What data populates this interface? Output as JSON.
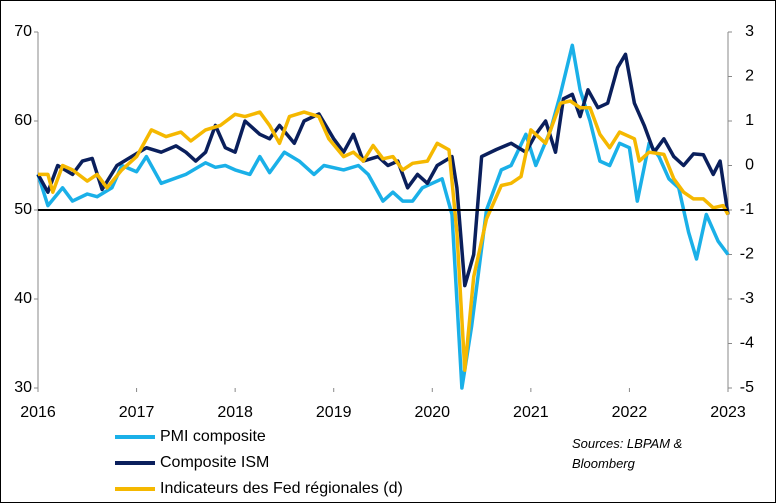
{
  "chart_data": {
    "type": "line",
    "xlim": [
      2016,
      2023
    ],
    "xticks": [
      2016,
      2017,
      2018,
      2019,
      2020,
      2021,
      2022,
      2023
    ],
    "ylim": [
      30,
      70
    ],
    "yticks": [
      30,
      40,
      50,
      60,
      70
    ],
    "y2lim": [
      -5,
      3
    ],
    "y2ticks": [
      -5,
      -4,
      -3,
      -2,
      -1,
      0,
      1,
      2,
      3
    ],
    "baseline": 50,
    "source": "Sources: LBPAM & Bloomberg",
    "series": [
      {
        "name": "PMI composite",
        "color": "#1ab0e8",
        "x": [
          2016.0,
          2016.1,
          2016.25,
          2016.35,
          2016.5,
          2016.6,
          2016.75,
          2016.85,
          2017.0,
          2017.1,
          2017.25,
          2017.5,
          2017.7,
          2017.8,
          2017.9,
          2018.0,
          2018.15,
          2018.25,
          2018.35,
          2018.5,
          2018.65,
          2018.8,
          2018.9,
          2019.1,
          2019.25,
          2019.35,
          2019.5,
          2019.6,
          2019.7,
          2019.8,
          2019.9,
          2020.1,
          2020.2,
          2020.3,
          2020.4,
          2020.55,
          2020.7,
          2020.8,
          2020.95,
          2021.05,
          2021.2,
          2021.3,
          2021.42,
          2021.5,
          2021.6,
          2021.7,
          2021.8,
          2021.9,
          2022.0,
          2022.08,
          2022.2,
          2022.3,
          2022.4,
          2022.5,
          2022.6,
          2022.68,
          2022.78,
          2022.9,
          2023.0
        ],
        "values": [
          54,
          50.5,
          52.5,
          51,
          51.8,
          51.5,
          52.5,
          55,
          54.3,
          56,
          53,
          54,
          55.3,
          54.8,
          55,
          54.5,
          54,
          56,
          54.2,
          56.5,
          55.5,
          54,
          55,
          54.5,
          55,
          54,
          51,
          52,
          51,
          51,
          52.5,
          53.5,
          49.5,
          30,
          37,
          50,
          54.5,
          55,
          58.5,
          55,
          59,
          63,
          68.5,
          63.5,
          60,
          55.5,
          55,
          57.5,
          57,
          51,
          57.5,
          56,
          53.5,
          52.5,
          47.5,
          44.5,
          49.5,
          46.5,
          45
        ]
      },
      {
        "name": "Composite ISM",
        "color": "#0a1f5c",
        "x": [
          2016.0,
          2016.1,
          2016.2,
          2016.35,
          2016.45,
          2016.55,
          2016.65,
          2016.8,
          2016.95,
          2017.1,
          2017.25,
          2017.4,
          2017.5,
          2017.6,
          2017.7,
          2017.8,
          2017.9,
          2018.0,
          2018.1,
          2018.25,
          2018.35,
          2018.45,
          2018.6,
          2018.7,
          2018.85,
          2019.0,
          2019.1,
          2019.2,
          2019.3,
          2019.45,
          2019.55,
          2019.65,
          2019.75,
          2019.85,
          2019.95,
          2020.05,
          2020.2,
          2020.25,
          2020.33,
          2020.42,
          2020.5,
          2020.65,
          2020.8,
          2020.95,
          2021.05,
          2021.15,
          2021.25,
          2021.33,
          2021.42,
          2021.5,
          2021.58,
          2021.68,
          2021.78,
          2021.88,
          2021.96,
          2022.05,
          2022.15,
          2022.25,
          2022.35,
          2022.45,
          2022.55,
          2022.65,
          2022.75,
          2022.85,
          2022.92,
          2023.0
        ],
        "values": [
          54,
          52,
          55,
          54,
          55.5,
          55.8,
          52.3,
          55,
          56,
          57,
          56.5,
          57.2,
          56.5,
          55.5,
          56.5,
          59.5,
          57,
          56.5,
          60,
          58.5,
          58,
          59.5,
          57.5,
          60,
          60.8,
          58,
          56.5,
          58.5,
          55.5,
          56,
          55,
          55.5,
          52.5,
          54,
          53,
          55,
          56,
          52.5,
          41.5,
          45,
          56,
          56.8,
          57.5,
          56.5,
          58.5,
          60,
          56.5,
          62.5,
          63,
          60.5,
          63.5,
          61.5,
          62,
          66,
          67.5,
          62,
          59.5,
          56.5,
          58,
          56,
          55,
          56.3,
          56.2,
          54,
          55.5,
          49.5
        ]
      },
      {
        "name": "Indicateurs des Fed régionales (d)",
        "color": "#f5b800",
        "axis": "y2",
        "x": [
          2016.0,
          2016.1,
          2016.15,
          2016.25,
          2016.35,
          2016.5,
          2016.6,
          2016.7,
          2016.85,
          2017.0,
          2017.15,
          2017.3,
          2017.45,
          2017.55,
          2017.7,
          2017.85,
          2018.0,
          2018.1,
          2018.25,
          2018.35,
          2018.45,
          2018.55,
          2018.7,
          2018.85,
          2018.95,
          2019.1,
          2019.2,
          2019.3,
          2019.4,
          2019.5,
          2019.6,
          2019.7,
          2019.8,
          2019.95,
          2020.05,
          2020.17,
          2020.25,
          2020.33,
          2020.42,
          2020.55,
          2020.7,
          2020.8,
          2020.9,
          2021.0,
          2021.15,
          2021.3,
          2021.4,
          2021.5,
          2021.6,
          2021.7,
          2021.8,
          2021.9,
          2022.05,
          2022.1,
          2022.2,
          2022.35,
          2022.45,
          2022.55,
          2022.65,
          2022.75,
          2022.85,
          2022.95,
          2023.0
        ],
        "values": [
          -0.2,
          -0.2,
          -0.6,
          0,
          -0.1,
          -0.35,
          -0.2,
          -0.5,
          -0.1,
          0.2,
          0.8,
          0.65,
          0.75,
          0.55,
          0.8,
          0.9,
          1.15,
          1.1,
          1.2,
          0.9,
          0.5,
          1.1,
          1.2,
          1.1,
          0.6,
          0.2,
          0.3,
          0.1,
          0.45,
          0.15,
          0.2,
          -0.1,
          0.05,
          0.1,
          0.5,
          0.35,
          -1.5,
          -4.6,
          -2.5,
          -1.2,
          -0.45,
          -0.4,
          -0.25,
          0.8,
          0.5,
          1.4,
          1.45,
          1.3,
          1.3,
          0.7,
          0.4,
          0.75,
          0.6,
          0.1,
          0.3,
          0.25,
          -0.3,
          -0.6,
          -0.75,
          -0.75,
          -0.95,
          -0.9,
          -1.1
        ]
      }
    ]
  }
}
